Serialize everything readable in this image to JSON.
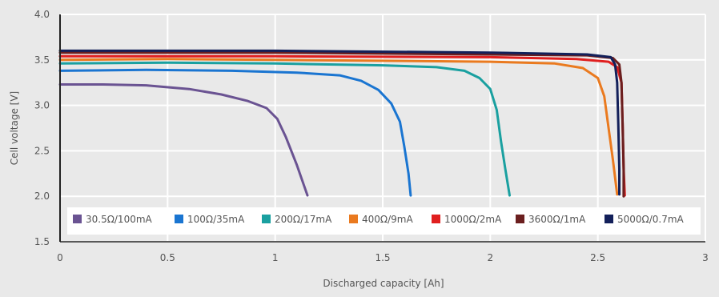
{
  "chart_data": {
    "type": "line",
    "title": "",
    "xlabel": "Discharged capacity [Ah]",
    "ylabel": "Cell voltage [V]",
    "xlim": [
      0,
      3
    ],
    "ylim": [
      1.5,
      4.0
    ],
    "xticks": [
      0,
      0.5,
      1,
      1.5,
      2,
      2.5,
      3
    ],
    "xtick_labels": [
      "0",
      "0.5",
      "1",
      "1.5",
      "2",
      "2.5",
      "3"
    ],
    "yticks": [
      1.5,
      2.0,
      2.5,
      3.0,
      3.5,
      4.0
    ],
    "ytick_labels": [
      "1.5",
      "2.0",
      "2.5",
      "3.0",
      "3.5",
      "4.0"
    ],
    "grid": true,
    "legend_position": "bottom inside plot",
    "series": [
      {
        "name": "30.5Ω/100mA",
        "color": "#6a5392",
        "points": [
          [
            0,
            3.23
          ],
          [
            0.2,
            3.23
          ],
          [
            0.4,
            3.22
          ],
          [
            0.6,
            3.18
          ],
          [
            0.75,
            3.12
          ],
          [
            0.87,
            3.05
          ],
          [
            0.96,
            2.97
          ],
          [
            1.01,
            2.85
          ],
          [
            1.05,
            2.65
          ],
          [
            1.1,
            2.35
          ],
          [
            1.15,
            2.01
          ]
        ]
      },
      {
        "name": "100Ω/35mA",
        "color": "#1a75d1",
        "points": [
          [
            0,
            3.38
          ],
          [
            0.4,
            3.39
          ],
          [
            0.8,
            3.38
          ],
          [
            1.1,
            3.36
          ],
          [
            1.3,
            3.33
          ],
          [
            1.4,
            3.27
          ],
          [
            1.48,
            3.17
          ],
          [
            1.54,
            3.02
          ],
          [
            1.58,
            2.82
          ],
          [
            1.6,
            2.55
          ],
          [
            1.62,
            2.25
          ],
          [
            1.63,
            2.01
          ]
        ]
      },
      {
        "name": "200Ω/17mA",
        "color": "#1aa0a0",
        "points": [
          [
            0,
            3.46
          ],
          [
            0.5,
            3.47
          ],
          [
            1.0,
            3.46
          ],
          [
            1.5,
            3.44
          ],
          [
            1.75,
            3.42
          ],
          [
            1.88,
            3.38
          ],
          [
            1.95,
            3.3
          ],
          [
            2.0,
            3.18
          ],
          [
            2.03,
            2.95
          ],
          [
            2.05,
            2.6
          ],
          [
            2.07,
            2.3
          ],
          [
            2.09,
            2.01
          ]
        ]
      },
      {
        "name": "400Ω/9mA",
        "color": "#ea7a1f",
        "points": [
          [
            0,
            3.5
          ],
          [
            0.5,
            3.51
          ],
          [
            1.0,
            3.5
          ],
          [
            1.5,
            3.49
          ],
          [
            2.0,
            3.48
          ],
          [
            2.3,
            3.46
          ],
          [
            2.43,
            3.41
          ],
          [
            2.5,
            3.3
          ],
          [
            2.53,
            3.1
          ],
          [
            2.55,
            2.75
          ],
          [
            2.57,
            2.4
          ],
          [
            2.59,
            2.02
          ]
        ]
      },
      {
        "name": "1000Ω/2mA",
        "color": "#e01f1f",
        "points": [
          [
            0,
            3.54
          ],
          [
            1,
            3.54
          ],
          [
            2,
            3.53
          ],
          [
            2.4,
            3.51
          ],
          [
            2.55,
            3.48
          ],
          [
            2.59,
            3.42
          ],
          [
            2.61,
            3.25
          ],
          [
            2.615,
            2.8
          ],
          [
            2.62,
            2.3
          ],
          [
            2.625,
            2.01
          ]
        ]
      },
      {
        "name": "3600Ω/1mA",
        "color": "#6b1f1f",
        "points": [
          [
            0,
            3.58
          ],
          [
            1,
            3.58
          ],
          [
            2,
            3.56
          ],
          [
            2.45,
            3.55
          ],
          [
            2.57,
            3.52
          ],
          [
            2.6,
            3.45
          ],
          [
            2.61,
            3.25
          ],
          [
            2.615,
            2.8
          ],
          [
            2.62,
            2.3
          ],
          [
            2.62,
            2.0
          ]
        ]
      },
      {
        "name": "5000Ω/0.7mA",
        "color": "#13205a",
        "points": [
          [
            0,
            3.6
          ],
          [
            1,
            3.6
          ],
          [
            2,
            3.58
          ],
          [
            2.45,
            3.56
          ],
          [
            2.56,
            3.53
          ],
          [
            2.58,
            3.45
          ],
          [
            2.59,
            3.25
          ],
          [
            2.595,
            2.8
          ],
          [
            2.6,
            2.3
          ],
          [
            2.6,
            2.02
          ]
        ]
      }
    ]
  }
}
